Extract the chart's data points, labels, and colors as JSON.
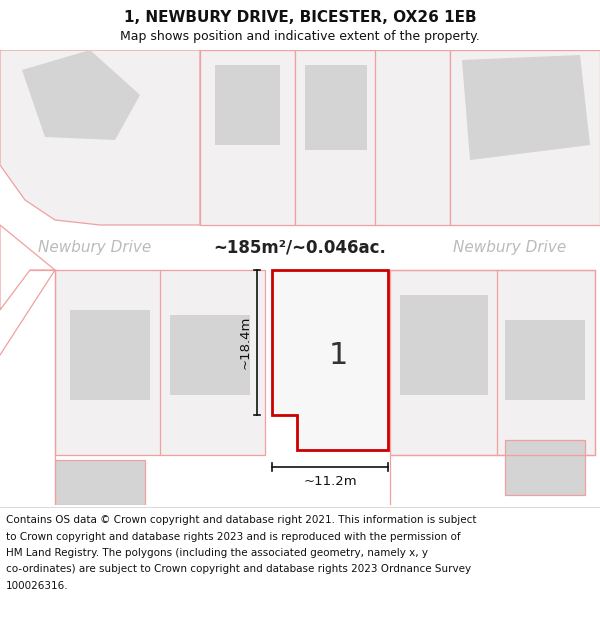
{
  "title": "1, NEWBURY DRIVE, BICESTER, OX26 1EB",
  "subtitle": "Map shows position and indicative extent of the property.",
  "area_label": "~185m²/~0.046ac.",
  "street_name": "Newbury Drive",
  "plot_number": "1",
  "dim_height": "~18.4m",
  "dim_width": "~11.2m",
  "map_bg": "#f2f0f0",
  "road_color": "#ffffff",
  "building_fill": "#d4d4d4",
  "building_stroke": "#c0c0c0",
  "plot_fill": "#f0efef",
  "plot_stroke": "#cc0000",
  "boundary_color": "#f0a0a0",
  "copyright_lines": [
    "Contains OS data © Crown copyright and database right 2021. This information is subject",
    "to Crown copyright and database rights 2023 and is reproduced with the permission of",
    "HM Land Registry. The polygons (including the associated geometry, namely x, y",
    "co-ordinates) are subject to Crown copyright and database rights 2023 Ordnance Survey",
    "100026316."
  ]
}
